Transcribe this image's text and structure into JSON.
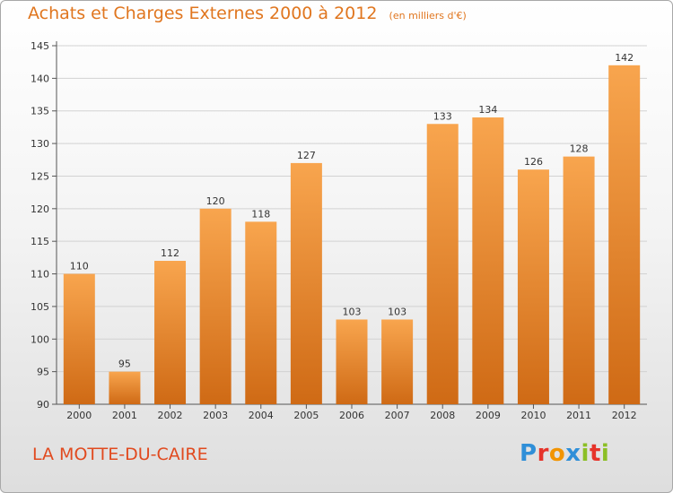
{
  "title": "Achats et Charges Externes 2000 à 2012",
  "unit": "(en milliers d'€)",
  "commune": "LA MOTTE-DU-CAIRE",
  "logo": {
    "letters": [
      {
        "char": "P",
        "color": "#2f8fd8"
      },
      {
        "char": "r",
        "color": "#e6332a"
      },
      {
        "char": "o",
        "color": "#f29400"
      },
      {
        "char": "x",
        "color": "#2f8fd8"
      },
      {
        "char": "i",
        "color": "#8cbf26"
      },
      {
        "char": "t",
        "color": "#e6332a"
      },
      {
        "char": "i",
        "color": "#8cbf26"
      }
    ]
  },
  "colors": {
    "bar_light": "#f8a54e",
    "bar_dark": "#cf6a15",
    "title": "#e0761f",
    "commune": "#e14a1f"
  },
  "chart_data": {
    "type": "bar",
    "categories": [
      "2000",
      "2001",
      "2002",
      "2003",
      "2004",
      "2005",
      "2006",
      "2007",
      "2008",
      "2009",
      "2010",
      "2011",
      "2012"
    ],
    "values": [
      110,
      95,
      112,
      120,
      118,
      127,
      103,
      103,
      133,
      134,
      126,
      128,
      142
    ],
    "ylim": [
      90,
      145
    ],
    "yticks": [
      90,
      95,
      100,
      105,
      110,
      115,
      120,
      125,
      130,
      135,
      140,
      145
    ],
    "grid": true
  }
}
